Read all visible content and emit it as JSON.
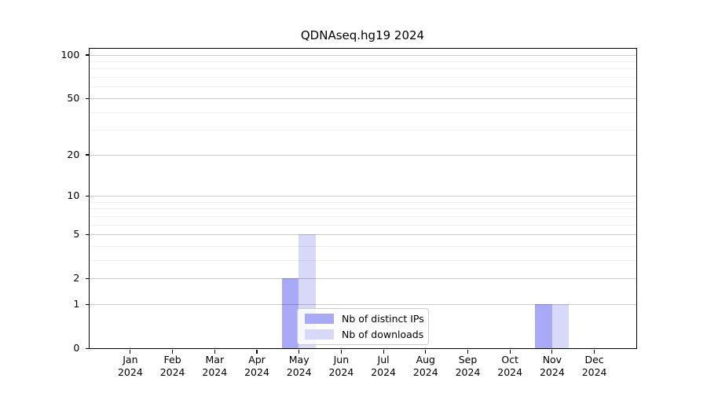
{
  "title": "QDNAseq.hg19 2024",
  "chart_data": {
    "type": "bar",
    "title": "QDNAseq.hg19 2024",
    "x_tick_months": [
      "Jan",
      "Feb",
      "Mar",
      "Apr",
      "May",
      "Jun",
      "Jul",
      "Aug",
      "Sep",
      "Oct",
      "Nov",
      "Dec"
    ],
    "x_tick_year": "2024",
    "series": [
      {
        "name": "Nb of distinct IPs",
        "color": "#a9a9f8",
        "values": [
          0,
          0,
          0,
          0,
          2,
          0,
          0,
          0,
          0,
          0,
          1,
          0
        ]
      },
      {
        "name": "Nb of downloads",
        "color": "#d8d8f8",
        "values": [
          0,
          0,
          0,
          0,
          5,
          0,
          0,
          0,
          0,
          0,
          1,
          0
        ]
      }
    ],
    "y_scale": "log1p",
    "ylim": [
      0,
      110
    ],
    "y_major_ticks": [
      0,
      1,
      2,
      5,
      10,
      20,
      50,
      100
    ],
    "y_minor_gridlines": [
      3,
      4,
      6,
      7,
      8,
      9,
      30,
      40,
      60,
      70,
      80,
      90
    ],
    "grid": "horizontal",
    "legend_position": "lower center"
  }
}
